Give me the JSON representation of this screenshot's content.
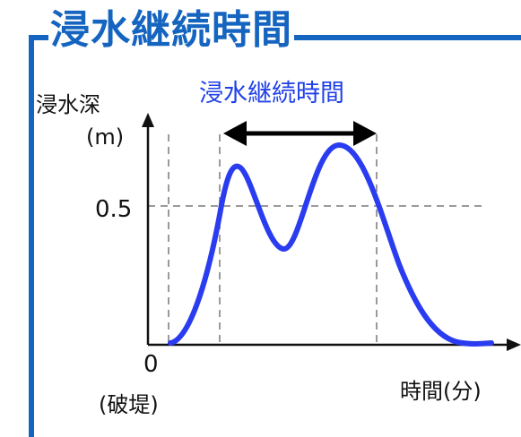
{
  "title": "浸水継続時間",
  "y_axis": {
    "label": "浸水深",
    "unit": "(m)",
    "tick": "0.5"
  },
  "x_axis": {
    "origin_label": "0",
    "origin_note": "(破堤)",
    "label": "時間(分)"
  },
  "annotation": {
    "span_label": "浸水継続時間"
  },
  "colors": {
    "frame": "#1565c0",
    "curve": "#2a3cf0",
    "span_label": "#2040e8",
    "guides": "#999999",
    "axis": "#111111"
  }
}
